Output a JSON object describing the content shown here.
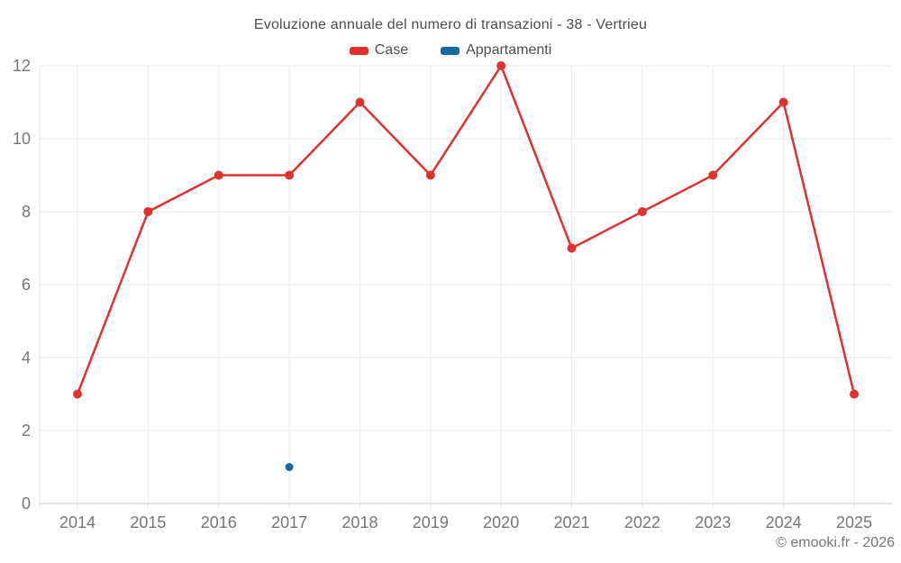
{
  "chart_data": {
    "type": "line",
    "title": "Evoluzione annuale del numero di transazioni - 38 - Vertrieu",
    "categories": [
      "2014",
      "2015",
      "2016",
      "2017",
      "2018",
      "2019",
      "2020",
      "2021",
      "2022",
      "2023",
      "2024",
      "2025"
    ],
    "series": [
      {
        "name": "Case",
        "color": "#df312d",
        "values": [
          3,
          8,
          9,
          9,
          11,
          9,
          12,
          7,
          8,
          9,
          11,
          3
        ]
      },
      {
        "name": "Appartamenti",
        "color": "#17699f",
        "values": [
          null,
          null,
          null,
          1,
          null,
          null,
          null,
          null,
          null,
          null,
          null,
          null
        ]
      }
    ],
    "xlabel": "",
    "ylabel": "",
    "ylim": [
      0,
      12
    ],
    "yticks": [
      0,
      2,
      4,
      6,
      8,
      10,
      12
    ],
    "grid": true,
    "legend_position": "top"
  },
  "footer": {
    "copyright": "© emooki.fr - 2026"
  },
  "colors": {
    "grid": "#eaeaea",
    "axis_bottom": "#c9c9c9",
    "axis_left": "#e2e2e2",
    "tick_label": "#757575",
    "title_text": "#4c4c4c"
  }
}
